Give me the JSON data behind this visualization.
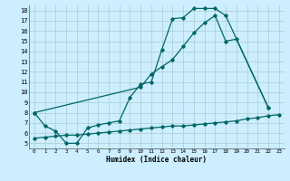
{
  "xlabel": "Humidex (Indice chaleur)",
  "bg_color": "#cceeff",
  "grid_color": "#aacccc",
  "line_color": "#006666",
  "xlim": [
    -0.5,
    23.5
  ],
  "ylim": [
    4.5,
    18.5
  ],
  "yticks": [
    5,
    6,
    7,
    8,
    9,
    10,
    11,
    12,
    13,
    14,
    15,
    16,
    17,
    18
  ],
  "xticks": [
    0,
    1,
    2,
    3,
    4,
    5,
    6,
    7,
    8,
    9,
    10,
    11,
    12,
    13,
    14,
    15,
    16,
    17,
    18,
    19,
    20,
    21,
    22,
    23
  ],
  "line1_x": [
    0,
    1,
    2,
    3,
    4,
    5,
    6,
    7,
    8,
    9,
    10,
    11,
    12,
    13,
    14,
    15,
    16,
    17,
    18,
    22
  ],
  "line1_y": [
    8.0,
    6.7,
    6.2,
    5.0,
    5.0,
    6.5,
    6.8,
    7.0,
    7.2,
    9.5,
    10.8,
    11.0,
    14.2,
    17.2,
    17.3,
    18.2,
    18.2,
    18.2,
    17.5,
    8.5
  ],
  "line2_x": [
    0,
    10,
    11,
    12,
    13,
    14,
    15,
    16,
    17,
    18,
    19,
    22
  ],
  "line2_y": [
    8.0,
    10.5,
    11.8,
    12.5,
    13.2,
    14.5,
    15.8,
    16.8,
    17.5,
    15.0,
    15.2,
    8.5
  ],
  "line3_x": [
    0,
    1,
    2,
    3,
    4,
    5,
    6,
    7,
    8,
    9,
    10,
    11,
    12,
    13,
    14,
    15,
    16,
    17,
    18,
    19,
    20,
    21,
    22,
    23
  ],
  "line3_y": [
    5.5,
    5.6,
    5.7,
    5.8,
    5.8,
    5.9,
    6.0,
    6.1,
    6.2,
    6.3,
    6.4,
    6.5,
    6.6,
    6.7,
    6.7,
    6.8,
    6.9,
    7.0,
    7.1,
    7.2,
    7.4,
    7.5,
    7.7,
    7.8
  ]
}
